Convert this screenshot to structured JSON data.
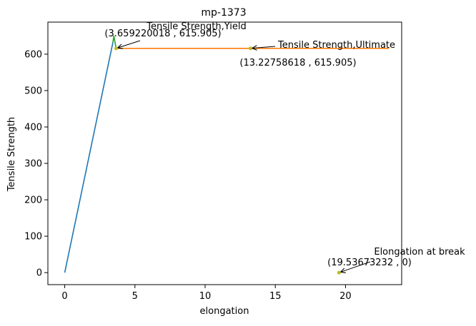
{
  "chart_data": {
    "type": "line",
    "title": "mp-1373",
    "xlabel": "elongation",
    "ylabel": "Tensile Strength",
    "xlim": [
      -1.2,
      24.0
    ],
    "ylim": [
      -33,
      688
    ],
    "xticks": [
      0,
      5,
      10,
      15,
      20
    ],
    "yticks": [
      0,
      100,
      200,
      300,
      400,
      500,
      600
    ],
    "xtick_labels": [
      "0",
      "5",
      "10",
      "15",
      "20"
    ],
    "ytick_labels": [
      "0",
      "100",
      "200",
      "300",
      "400",
      "500",
      "600"
    ],
    "grid": false,
    "colors": {
      "elastic": "#1f77b4",
      "plastic": "#ff7f0e",
      "yield_segment": "#2ca02c",
      "markers": "#bcbd22"
    },
    "series": [
      {
        "points": [
          [
            0,
            0
          ],
          [
            3.43,
            632
          ]
        ]
      },
      {
        "points": [
          [
            3.54,
            615.905
          ],
          [
            23.1,
            615.905
          ]
        ]
      },
      {
        "points": [
          [
            3.43,
            632
          ],
          [
            3.5,
            650
          ],
          [
            3.659220018,
            615.905
          ]
        ]
      }
    ],
    "markers": [
      {
        "x": 3.659220018,
        "y": 615.905
      },
      {
        "x": 13.22758618,
        "y": 615.905
      },
      {
        "x": 19.53673232,
        "y": 0
      }
    ],
    "annotations": [
      {
        "label": "Tensile Strength,Yield",
        "coord_text": "(3.659220018 , 615.905)",
        "x": 3.659220018,
        "y": 615.905
      },
      {
        "label": "Tensile Strength,Ultimate",
        "coord_text": "(13.22758618 , 615.905)",
        "x": 13.22758618,
        "y": 615.905
      },
      {
        "label": "Elongation at break",
        "coord_text": "(19.53673232 , 0)",
        "x": 19.53673232,
        "y": 0
      }
    ]
  }
}
